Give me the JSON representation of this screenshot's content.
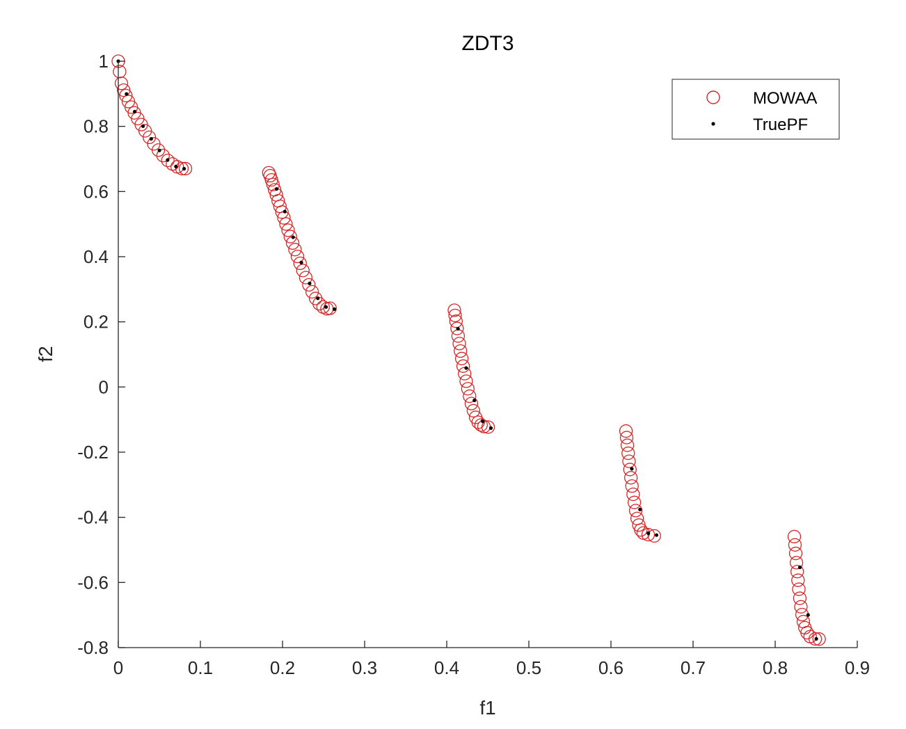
{
  "chart_data": {
    "type": "scatter",
    "title": "ZDT3",
    "xlabel": "f1",
    "ylabel": "f2",
    "xlim": [
      0,
      0.9
    ],
    "ylim": [
      -0.8,
      1
    ],
    "xticks": [
      0,
      0.1,
      0.2,
      0.3,
      0.4,
      0.5,
      0.6,
      0.7,
      0.8,
      0.9
    ],
    "xtick_labels": [
      "0",
      "0.1",
      "0.2",
      "0.3",
      "0.4",
      "0.5",
      "0.6",
      "0.7",
      "0.8",
      "0.9"
    ],
    "yticks": [
      -0.8,
      -0.6,
      -0.4,
      -0.2,
      0,
      0.2,
      0.4,
      0.6,
      0.8,
      1
    ],
    "ytick_labels": [
      "-0.8",
      "-0.6",
      "-0.4",
      "-0.2",
      "0",
      "0.2",
      "0.4",
      "0.6",
      "0.8",
      "1"
    ],
    "grid": false,
    "legend_position": "top-right",
    "series": [
      {
        "name": "MOWAA",
        "marker": "open-circle",
        "color": "#d62728",
        "points": [
          [
            0.0,
            1.0
          ],
          [
            0.0016,
            0.9681
          ],
          [
            0.0038,
            0.9321
          ],
          [
            0.0065,
            0.9112
          ],
          [
            0.0092,
            0.8946
          ],
          [
            0.0123,
            0.8763
          ],
          [
            0.0158,
            0.8591
          ],
          [
            0.0195,
            0.8415
          ],
          [
            0.0236,
            0.8238
          ],
          [
            0.028,
            0.8054
          ],
          [
            0.0327,
            0.7863
          ],
          [
            0.0378,
            0.7664
          ],
          [
            0.0432,
            0.7463
          ],
          [
            0.0488,
            0.7272
          ],
          [
            0.0545,
            0.7104
          ],
          [
            0.0603,
            0.6955
          ],
          [
            0.066,
            0.6845
          ],
          [
            0.0718,
            0.6758
          ],
          [
            0.0775,
            0.6704
          ],
          [
            0.0818,
            0.6702
          ],
          [
            0.1833,
            0.6576
          ],
          [
            0.1849,
            0.6485
          ],
          [
            0.1866,
            0.6356
          ],
          [
            0.1884,
            0.6216
          ],
          [
            0.1904,
            0.6053
          ],
          [
            0.1925,
            0.5898
          ],
          [
            0.1947,
            0.5716
          ],
          [
            0.1969,
            0.5545
          ],
          [
            0.1993,
            0.5371
          ],
          [
            0.2017,
            0.5192
          ],
          [
            0.2042,
            0.5002
          ],
          [
            0.2068,
            0.4811
          ],
          [
            0.2095,
            0.4618
          ],
          [
            0.2123,
            0.4419
          ],
          [
            0.2152,
            0.4217
          ],
          [
            0.2182,
            0.4008
          ],
          [
            0.2214,
            0.3797
          ],
          [
            0.2248,
            0.3576
          ],
          [
            0.2283,
            0.3357
          ],
          [
            0.2321,
            0.3135
          ],
          [
            0.2361,
            0.2921
          ],
          [
            0.2403,
            0.2718
          ],
          [
            0.2447,
            0.2556
          ],
          [
            0.2494,
            0.2454
          ],
          [
            0.2541,
            0.2401
          ],
          [
            0.2579,
            0.2417
          ],
          [
            0.4093,
            0.2356
          ],
          [
            0.4102,
            0.2196
          ],
          [
            0.4113,
            0.2018
          ],
          [
            0.4126,
            0.1797
          ],
          [
            0.4139,
            0.1564
          ],
          [
            0.4153,
            0.1333
          ],
          [
            0.4167,
            0.1104
          ],
          [
            0.4183,
            0.0873
          ],
          [
            0.42,
            0.0641
          ],
          [
            0.4218,
            0.0408
          ],
          [
            0.4237,
            0.0178
          ],
          [
            0.4257,
            -0.0054
          ],
          [
            0.4278,
            -0.0283
          ],
          [
            0.43,
            -0.0508
          ],
          [
            0.4325,
            -0.0728
          ],
          [
            0.4352,
            -0.0931
          ],
          [
            0.4383,
            -0.1083
          ],
          [
            0.4418,
            -0.1167
          ],
          [
            0.4453,
            -0.1213
          ],
          [
            0.4504,
            -0.1231
          ],
          [
            0.6183,
            -0.1353
          ],
          [
            0.6191,
            -0.1553
          ],
          [
            0.62,
            -0.1788
          ],
          [
            0.621,
            -0.2033
          ],
          [
            0.622,
            -0.2281
          ],
          [
            0.6231,
            -0.2533
          ],
          [
            0.6243,
            -0.2786
          ],
          [
            0.6256,
            -0.3041
          ],
          [
            0.627,
            -0.3294
          ],
          [
            0.6285,
            -0.3544
          ],
          [
            0.6301,
            -0.3794
          ],
          [
            0.6319,
            -0.4036
          ],
          [
            0.634,
            -0.4238
          ],
          [
            0.6363,
            -0.4389
          ],
          [
            0.6394,
            -0.4482
          ],
          [
            0.6453,
            -0.4532
          ],
          [
            0.6528,
            -0.4571
          ],
          [
            0.8233,
            -0.4593
          ],
          [
            0.8241,
            -0.4847
          ],
          [
            0.825,
            -0.5108
          ],
          [
            0.8259,
            -0.5393
          ],
          [
            0.8268,
            -0.5667
          ],
          [
            0.8278,
            -0.5933
          ],
          [
            0.8288,
            -0.6208
          ],
          [
            0.83,
            -0.6485
          ],
          [
            0.8313,
            -0.6747
          ],
          [
            0.8327,
            -0.6986
          ],
          [
            0.8343,
            -0.7201
          ],
          [
            0.8362,
            -0.7389
          ],
          [
            0.8389,
            -0.7542
          ],
          [
            0.8426,
            -0.7661
          ],
          [
            0.8488,
            -0.7733
          ],
          [
            0.8535,
            -0.7737
          ]
        ]
      },
      {
        "name": "TruePF",
        "marker": "dot",
        "color": "#000000",
        "points": [
          [
            0.0,
            1.0
          ],
          [
            0.01,
            0.8995
          ],
          [
            0.02,
            0.8453
          ],
          [
            0.0301,
            0.8007
          ],
          [
            0.0401,
            0.7617
          ],
          [
            0.0501,
            0.7263
          ],
          [
            0.0601,
            0.6968
          ],
          [
            0.0702,
            0.6769
          ],
          [
            0.0802,
            0.6699
          ],
          [
            0.1928,
            0.6081
          ],
          [
            0.2028,
            0.5385
          ],
          [
            0.2129,
            0.4597
          ],
          [
            0.2229,
            0.3821
          ],
          [
            0.233,
            0.3178
          ],
          [
            0.243,
            0.2724
          ],
          [
            0.253,
            0.2456
          ],
          [
            0.2631,
            0.2389
          ],
          [
            0.4137,
            0.1788
          ],
          [
            0.4237,
            0.0582
          ],
          [
            0.4337,
            -0.0411
          ],
          [
            0.4438,
            -0.1054
          ],
          [
            0.4538,
            -0.1261
          ],
          [
            0.6254,
            -0.2511
          ],
          [
            0.6354,
            -0.3759
          ],
          [
            0.6455,
            -0.4488
          ],
          [
            0.6555,
            -0.4545
          ],
          [
            0.8301,
            -0.5537
          ],
          [
            0.8401,
            -0.6997
          ],
          [
            0.8501,
            -0.7731
          ]
        ]
      }
    ]
  }
}
